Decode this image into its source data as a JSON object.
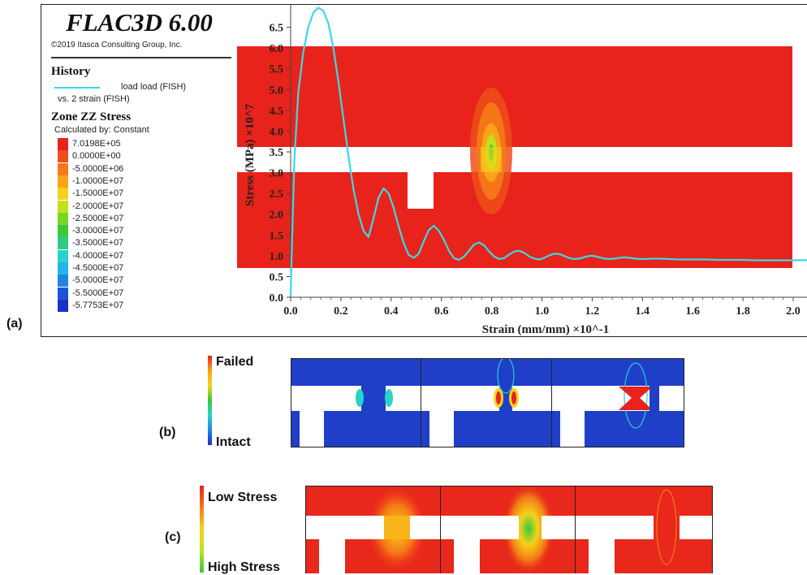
{
  "labels": {
    "a": "(a)",
    "b": "(b)",
    "c": "(c)"
  },
  "legend": {
    "app_title": "FLAC3D 6.00",
    "copyright": "©2019 Itasca Consulting Group, Inc.",
    "history_title": "History",
    "history_load": "load load (FISH)",
    "history_vs": "vs. 2 strain (FISH)",
    "line_color": "#3ad8e6",
    "zone_title": "Zone ZZ Stress",
    "zone_calc": "Calculated by: Constant",
    "colorbar": [
      {
        "label": "7.0198E+05",
        "color": "#e8231b"
      },
      {
        "label": "0.0000E+00",
        "color": "#ee4f1a"
      },
      {
        "label": "-5.0000E+06",
        "color": "#f57a17"
      },
      {
        "label": "-1.0000E+07",
        "color": "#f8a416"
      },
      {
        "label": "-1.5000E+07",
        "color": "#f3d31b"
      },
      {
        "label": "-2.0000E+07",
        "color": "#bfe21e"
      },
      {
        "label": "-2.5000E+07",
        "color": "#79d524"
      },
      {
        "label": "-3.0000E+07",
        "color": "#3cc83c"
      },
      {
        "label": "-3.5000E+07",
        "color": "#2ecb86"
      },
      {
        "label": "-4.0000E+07",
        "color": "#27d3c8"
      },
      {
        "label": "-4.5000E+07",
        "color": "#22b5e8"
      },
      {
        "label": "-5.0000E+07",
        "color": "#1f86e0"
      },
      {
        "label": "-5.5000E+07",
        "color": "#1c55d4"
      },
      {
        "label": "-5.7753E+07",
        "color": "#1a2fc8"
      }
    ]
  },
  "chart_data": {
    "type": "line",
    "xlabel": "Strain (mm/mm) ×10^-1",
    "ylabel": "Stress (MPa) ×10^7",
    "xlim": [
      0,
      2.0
    ],
    "ylim": [
      0,
      7.0
    ],
    "xticks": [
      "0.0",
      "0.2",
      "0.4",
      "0.6",
      "0.8",
      "1.0",
      "1.2",
      "1.4",
      "1.6",
      "1.8",
      "2.0"
    ],
    "yticks": [
      "0.0",
      "0.5",
      "1.0",
      "1.5",
      "2.0",
      "2.5",
      "3.0",
      "3.5",
      "4.0",
      "4.5",
      "5.0",
      "5.5",
      "6.0",
      "6.5"
    ],
    "series": [
      {
        "name": "load load (FISH)",
        "color": "#3ad8e6",
        "x": [
          0.0,
          0.005,
          0.015,
          0.03,
          0.05,
          0.07,
          0.09,
          0.11,
          0.13,
          0.15,
          0.17,
          0.19,
          0.21,
          0.23,
          0.25,
          0.27,
          0.29,
          0.31,
          0.33,
          0.35,
          0.37,
          0.39,
          0.41,
          0.43,
          0.45,
          0.47,
          0.49,
          0.51,
          0.53,
          0.55,
          0.57,
          0.59,
          0.61,
          0.63,
          0.65,
          0.67,
          0.69,
          0.71,
          0.73,
          0.75,
          0.77,
          0.79,
          0.81,
          0.83,
          0.85,
          0.87,
          0.89,
          0.91,
          0.93,
          0.95,
          0.97,
          0.99,
          1.01,
          1.03,
          1.05,
          1.07,
          1.09,
          1.11,
          1.13,
          1.15,
          1.17,
          1.19,
          1.21,
          1.23,
          1.25,
          1.27,
          1.29,
          1.31,
          1.33,
          1.35,
          1.37,
          1.39,
          1.41,
          1.45,
          1.5,
          1.55,
          1.6,
          1.65,
          1.7,
          1.75,
          1.8,
          1.85,
          1.9,
          1.95,
          2.0,
          2.08
        ],
        "y": [
          0.05,
          1.2,
          3.3,
          4.9,
          5.9,
          6.5,
          6.85,
          6.97,
          6.9,
          6.6,
          6.0,
          5.2,
          4.3,
          3.4,
          2.6,
          2.0,
          1.6,
          1.45,
          1.9,
          2.4,
          2.62,
          2.5,
          2.15,
          1.7,
          1.3,
          1.02,
          0.95,
          1.05,
          1.35,
          1.62,
          1.72,
          1.6,
          1.38,
          1.12,
          0.94,
          0.9,
          0.98,
          1.12,
          1.27,
          1.32,
          1.25,
          1.1,
          0.98,
          0.92,
          0.94,
          1.03,
          1.1,
          1.12,
          1.07,
          0.98,
          0.93,
          0.91,
          0.95,
          1.01,
          1.05,
          1.04,
          0.99,
          0.94,
          0.92,
          0.93,
          0.97,
          1.0,
          0.99,
          0.96,
          0.93,
          0.92,
          0.93,
          0.95,
          0.96,
          0.95,
          0.93,
          0.92,
          0.92,
          0.93,
          0.92,
          0.91,
          0.91,
          0.91,
          0.9,
          0.9,
          0.9,
          0.89,
          0.89,
          0.89,
          0.89,
          0.89
        ]
      }
    ]
  },
  "panel_b": {
    "scale_top": "Failed",
    "scale_bottom": "Intact"
  },
  "panel_c": {
    "scale_top": "Low Stress",
    "scale_bottom": "High Stress"
  }
}
